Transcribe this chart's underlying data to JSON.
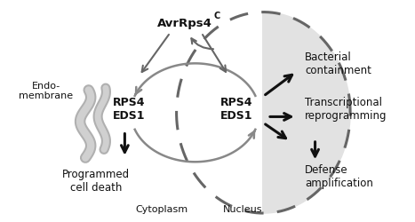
{
  "white": "#ffffff",
  "gray_light": "#e2e2e2",
  "gray_medium": "#888888",
  "gray_dark": "#666666",
  "dark": "#111111",
  "labels": {
    "endomembrane": "Endo-\nmembrane",
    "rps4_eds1_left": "RPS4\nEDS1",
    "rps4_eds1_right": "RPS4\nEDS1",
    "programmed_cell_death": "Programmed\ncell death",
    "cytoplasm": "Cytoplasm",
    "nucleus": "Nucleus",
    "bacterial_containment": "Bacterial\ncontainment",
    "transcriptional_reprogramming": "Transcriptional\nreprogramming",
    "defense_amplification": "Defense\namplification"
  },
  "figsize": [
    4.67,
    2.51
  ],
  "dpi": 100
}
